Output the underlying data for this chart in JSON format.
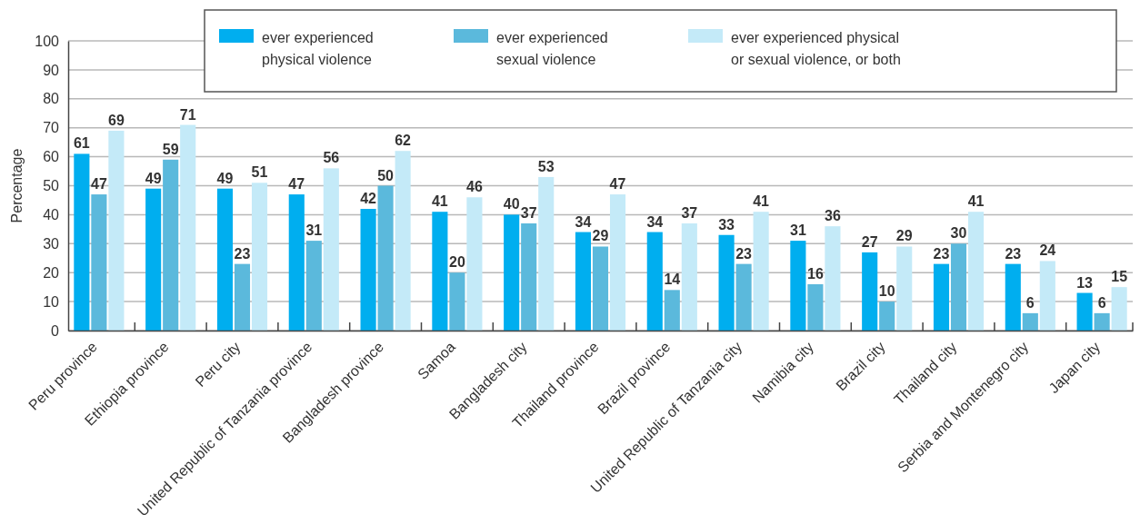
{
  "chart_data": {
    "type": "bar",
    "ylabel": "Percentage",
    "categories": [
      "Peru province",
      "Ethiopia province",
      "Peru city",
      "United Republic of Tanzania province",
      "Bangladesh province",
      "Samoa",
      "Bangladesh city",
      "Thailand province",
      "Brazil province",
      "United Republic of Tanzania city",
      "Namibia city",
      "Brazil city",
      "Thailand city",
      "Serbia and Montenegro city",
      "Japan city"
    ],
    "series": [
      {
        "name": "ever experienced physical violence",
        "color": "#00aeef",
        "values": [
          61,
          49,
          49,
          47,
          42,
          41,
          40,
          34,
          34,
          33,
          31,
          27,
          23,
          23,
          13
        ]
      },
      {
        "name": "ever experienced sexual violence",
        "color": "#5bb9dc",
        "values": [
          47,
          59,
          23,
          31,
          50,
          20,
          37,
          29,
          14,
          23,
          16,
          10,
          30,
          6,
          6
        ]
      },
      {
        "name": "ever experienced physical or sexual violence, or both",
        "color": "#c4eaf8",
        "values": [
          69,
          71,
          51,
          56,
          62,
          46,
          53,
          47,
          37,
          41,
          36,
          29,
          41,
          24,
          15
        ]
      }
    ],
    "ylim": [
      0,
      100
    ],
    "yticks": [
      0,
      10,
      20,
      30,
      40,
      50,
      60,
      70,
      80,
      90,
      100
    ],
    "grid": "y",
    "legend": "top right",
    "data_labels": true
  }
}
